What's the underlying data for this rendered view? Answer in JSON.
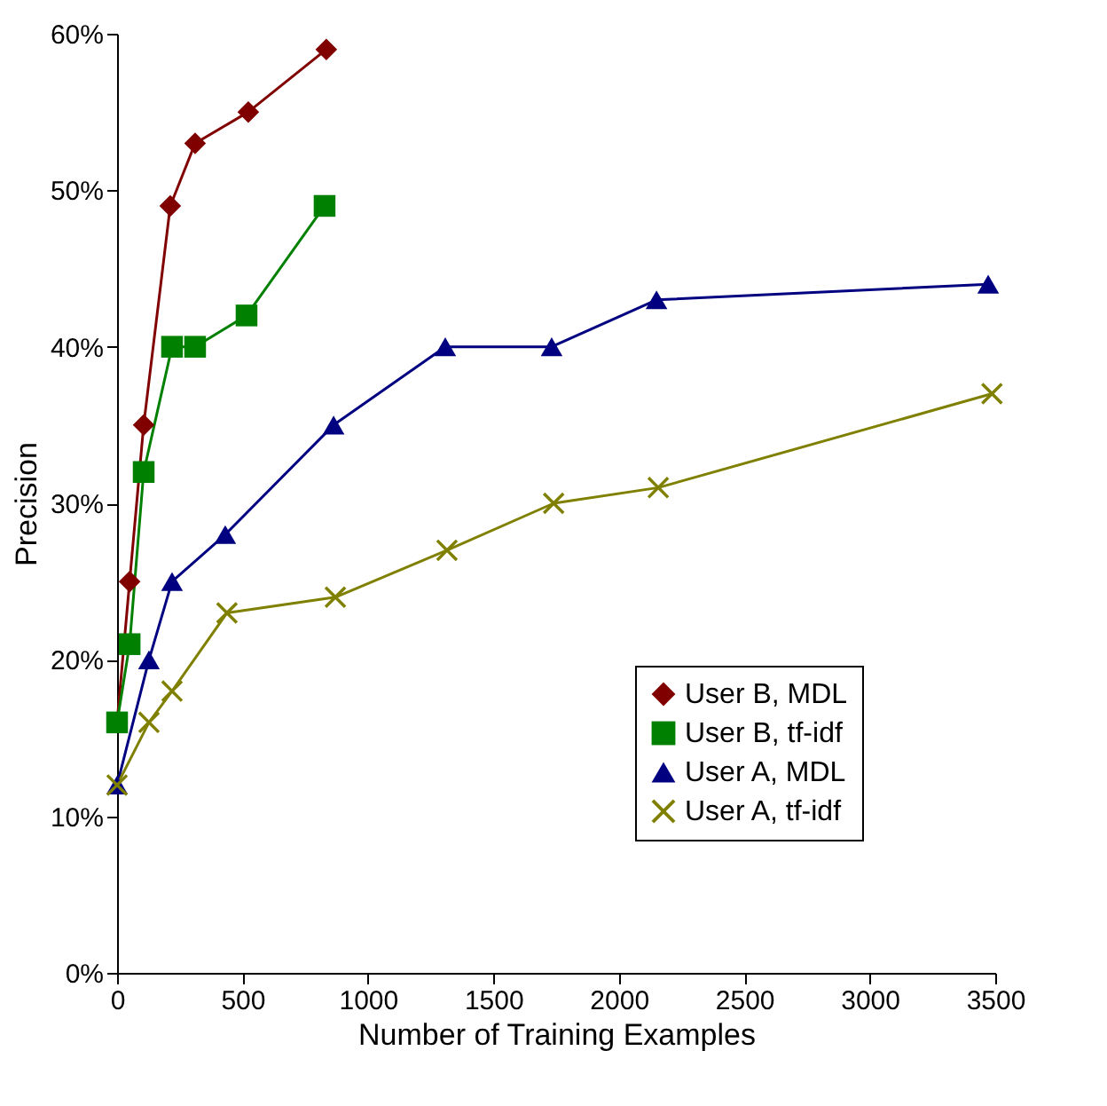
{
  "chart_data": {
    "type": "line",
    "xlabel": "Number of Training Examples",
    "ylabel": "Precision",
    "series": [
      {
        "name": "User B, MDL",
        "color": "#800000",
        "marker": "diamond",
        "x": [
          0,
          50,
          106,
          212,
          311,
          523,
          834
        ],
        "values": [
          16,
          25,
          35,
          49,
          53,
          55,
          59
        ]
      },
      {
        "name": "User B, tf-idf",
        "color": "#008000",
        "marker": "square",
        "x": [
          0,
          50,
          106,
          219,
          311,
          516,
          827
        ],
        "values": [
          16,
          21,
          32,
          40,
          40,
          42,
          49
        ]
      },
      {
        "name": "User A, MDL",
        "color": "#000080",
        "marker": "triangle",
        "x": [
          0,
          127,
          219,
          431,
          863,
          1308,
          1732,
          2150,
          3472
        ],
        "values": [
          12,
          20,
          25,
          28,
          35,
          40,
          40,
          43,
          44
        ]
      },
      {
        "name": "User A, tf-idf",
        "color": "#808000",
        "marker": "cross",
        "x": [
          0,
          127,
          219,
          438,
          870,
          1315,
          1740,
          2157,
          3487
        ],
        "values": [
          12,
          16,
          18,
          23,
          24,
          27,
          30,
          31,
          37
        ]
      }
    ],
    "xlim": [
      0,
      3500
    ],
    "xticks": [
      0,
      500,
      1000,
      1500,
      2000,
      2500,
      3000,
      3500
    ],
    "ylim": [
      0,
      60
    ],
    "yticks": [
      {
        "value": 0,
        "label": "0%"
      },
      {
        "value": 10,
        "label": "10%"
      },
      {
        "value": 20,
        "label": "20%"
      },
      {
        "value": 30,
        "label": "30%"
      },
      {
        "value": 40,
        "label": "40%"
      },
      {
        "value": 50,
        "label": "50%"
      },
      {
        "value": 60,
        "label": "60%"
      }
    ],
    "grid": false,
    "legend": "bottom right",
    "line_style": "solid"
  }
}
